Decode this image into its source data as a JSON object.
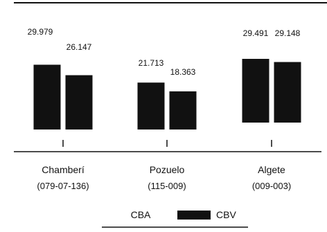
{
  "chart_data": {
    "type": "bar",
    "categories": [
      {
        "name": "Chamberí",
        "code": "(079-07-136)"
      },
      {
        "name": "Pozuelo",
        "code": "(115-009)"
      },
      {
        "name": "Algete",
        "code": "(009-003)"
      }
    ],
    "series": [
      {
        "name": "CBA",
        "values": [
          29.979,
          21.713,
          29.491
        ],
        "labels": [
          "29.979",
          "21.713",
          "29.491"
        ]
      },
      {
        "name": "CBV",
        "values": [
          26.147,
          18.363,
          29.148
        ],
        "labels": [
          "26.147",
          "18.363",
          "29.148"
        ]
      }
    ],
    "title": "",
    "xlabel": "",
    "ylabel": "",
    "legend_position": "bottom",
    "colors": {
      "bar": "#111111",
      "axis": "#111111",
      "text": "#111111"
    }
  }
}
